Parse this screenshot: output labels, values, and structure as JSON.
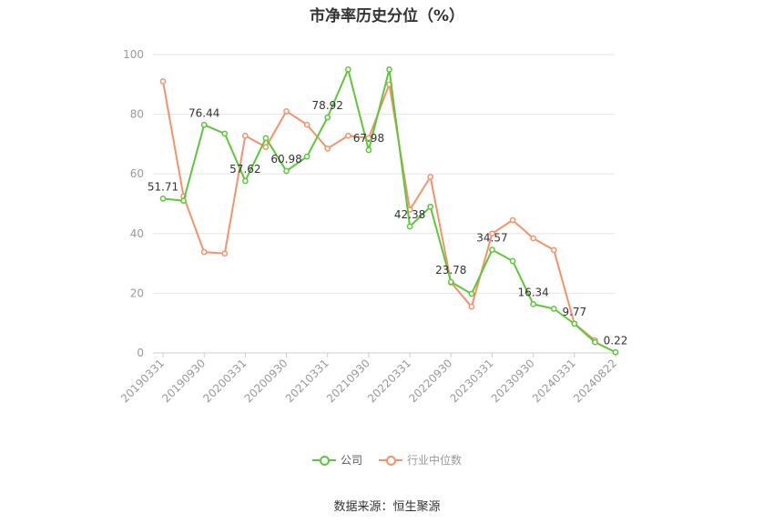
{
  "title": "市净率历史分位（%）",
  "source": "数据来源：恒生聚源",
  "colors": {
    "company": "#5dc73a",
    "industry": "#f5926a",
    "grid": "#e6e6e6",
    "axis": "#999999",
    "label": "#333333"
  },
  "chart_data": {
    "type": "line",
    "title": "市净率历史分位（%）",
    "xlabel": "",
    "ylabel": "",
    "ylim": [
      0,
      100
    ],
    "yticks": [
      0,
      20,
      40,
      60,
      80,
      100
    ],
    "grid": true,
    "legend_position": "bottom",
    "x_tick_labels": [
      "20190331",
      "20190930",
      "20200331",
      "20200930",
      "20210331",
      "20210930",
      "20220331",
      "20220930",
      "20230331",
      "20230930",
      "20240331",
      "20240822"
    ],
    "x": [
      "20190331",
      "20190630",
      "20190930",
      "20191231",
      "20200331",
      "20200630",
      "20200930",
      "20201231",
      "20210331",
      "20210630",
      "20210930",
      "20211231",
      "20220331",
      "20220630",
      "20220930",
      "20221231",
      "20230331",
      "20230630",
      "20230930",
      "20231231",
      "20240331",
      "20240630",
      "20240822"
    ],
    "series": [
      {
        "name": "公司",
        "color": "#5dc73a",
        "values": [
          51.71,
          51.0,
          76.44,
          73.5,
          57.62,
          72.0,
          60.98,
          65.8,
          78.92,
          95.0,
          67.98,
          95.0,
          42.38,
          49.0,
          23.78,
          19.8,
          34.57,
          30.8,
          16.34,
          14.8,
          9.77,
          3.6,
          0.22
        ],
        "labels": {
          "0": "51.71",
          "2": "76.44",
          "4": "57.62",
          "6": "60.98",
          "8": "78.92",
          "10": "67.98",
          "12": "42.38",
          "14": "23.78",
          "16": "34.57",
          "18": "16.34",
          "20": "9.77",
          "22": "0.22"
        }
      },
      {
        "name": "行业中位数",
        "color": "#f5926a",
        "values": [
          91.0,
          52.5,
          33.8,
          33.3,
          72.8,
          69.0,
          81.0,
          76.5,
          68.5,
          72.8,
          72.0,
          90.0,
          48.0,
          59.0,
          23.6,
          15.5,
          40.0,
          44.5,
          38.4,
          34.5,
          9.8,
          4.2,
          null
        ]
      }
    ]
  }
}
